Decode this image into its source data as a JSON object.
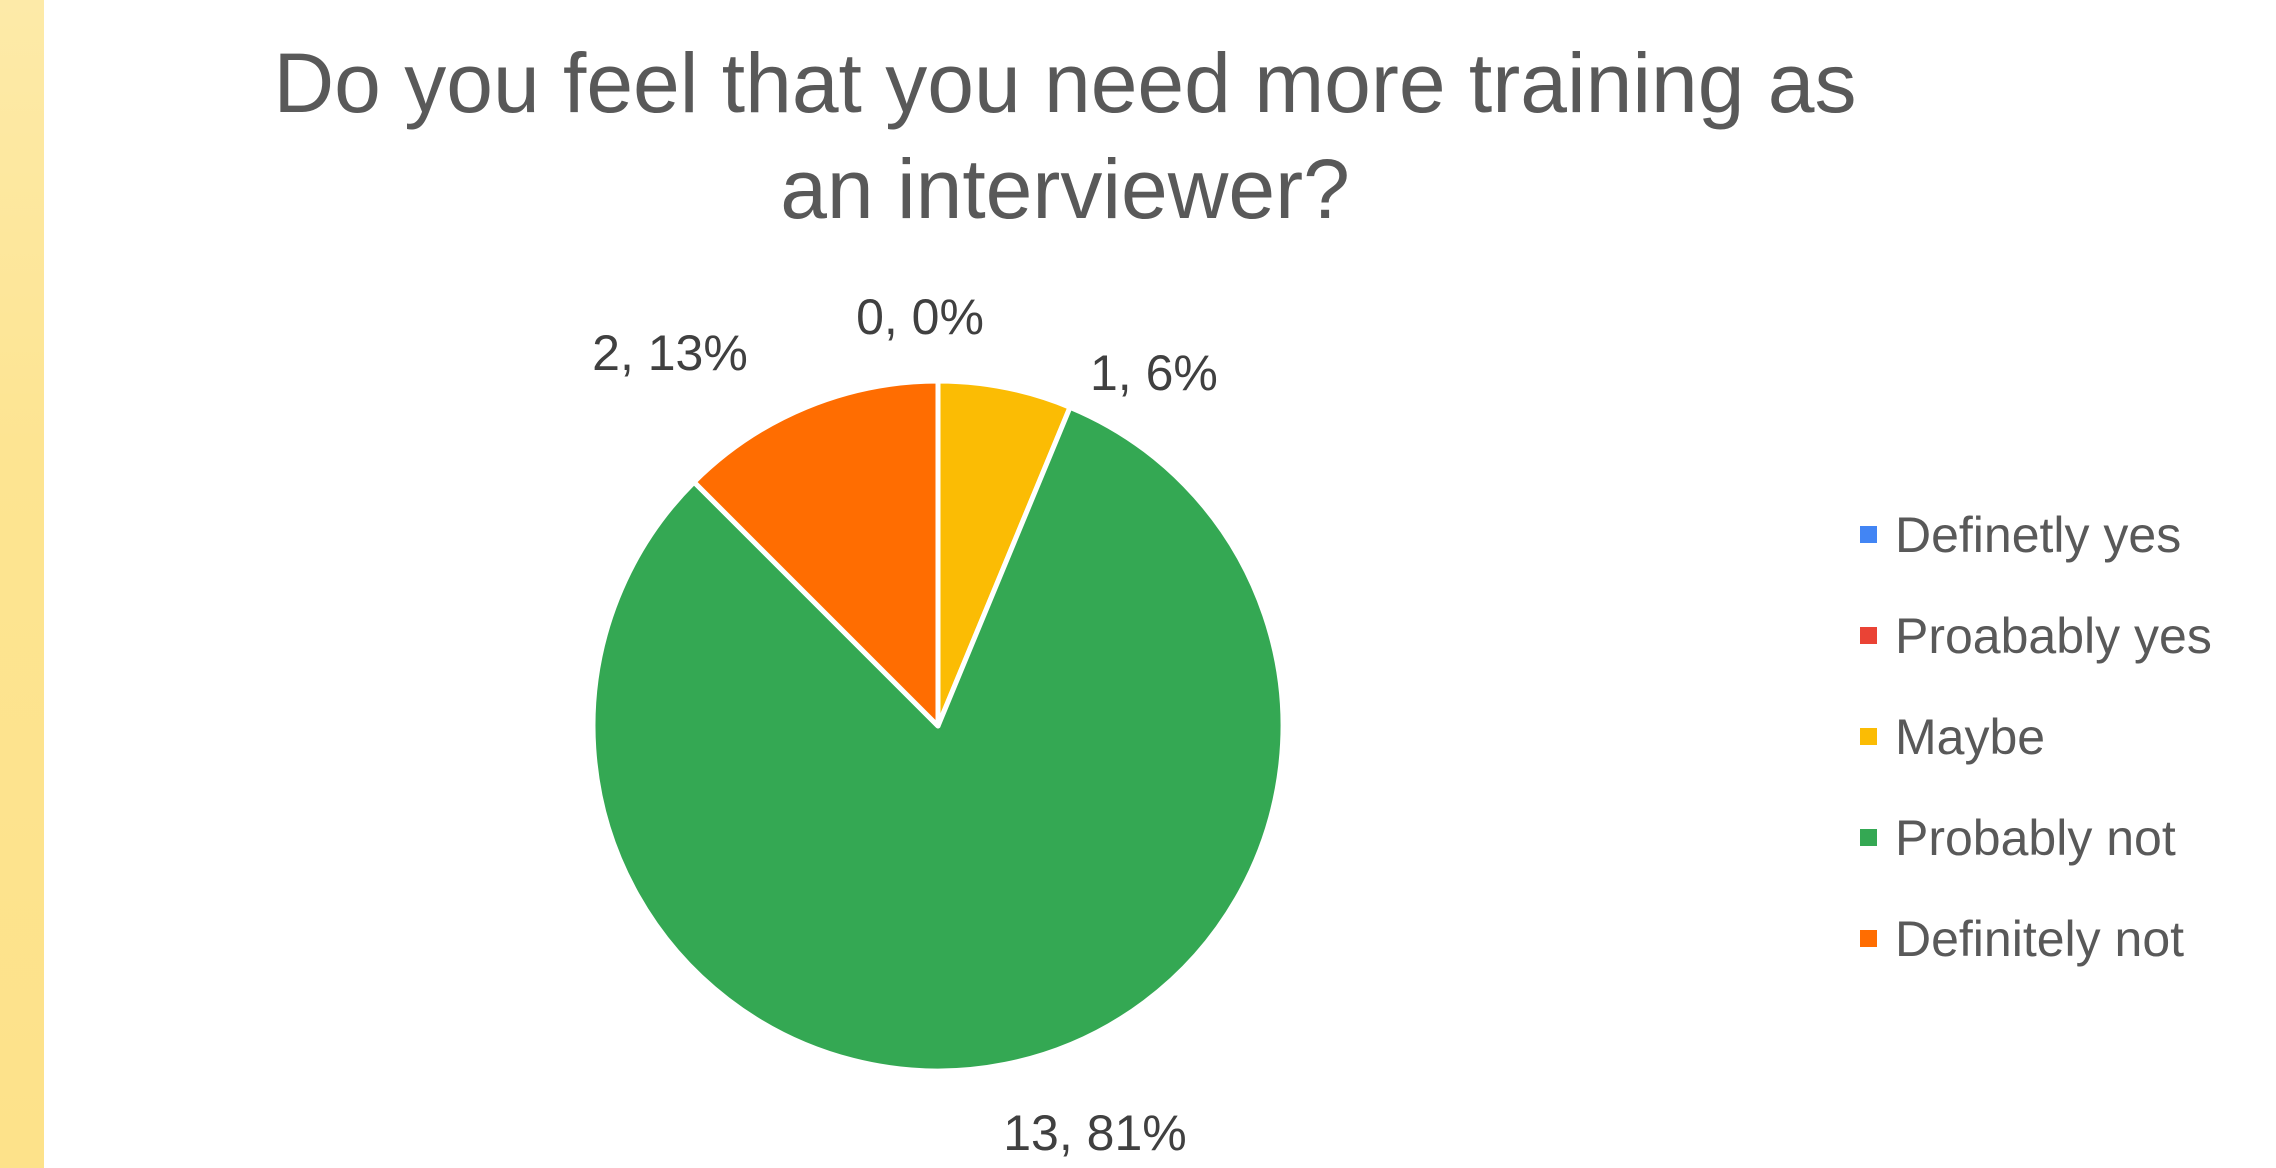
{
  "chart_data": {
    "type": "pie",
    "title": "Do you feel that you need more training as\nan interviewer?",
    "slices": [
      {
        "name": "Definetly yes",
        "value": 0,
        "percent": 0,
        "label": "0, 0%",
        "color": "#4285f4"
      },
      {
        "name": "Proabably yes",
        "value": 0,
        "percent": 0,
        "label": "",
        "color": "#ea4335"
      },
      {
        "name": "Maybe",
        "value": 1,
        "percent": 6,
        "label": "1, 6%",
        "color": "#fbbc04"
      },
      {
        "name": "Probably not",
        "value": 13,
        "percent": 81,
        "label": "13, 81%",
        "color": "#34a853"
      },
      {
        "name": "Definitely not",
        "value": 2,
        "percent": 13,
        "label": "2, 13%",
        "color": "#ff6d01"
      }
    ],
    "legend_position": "right"
  }
}
